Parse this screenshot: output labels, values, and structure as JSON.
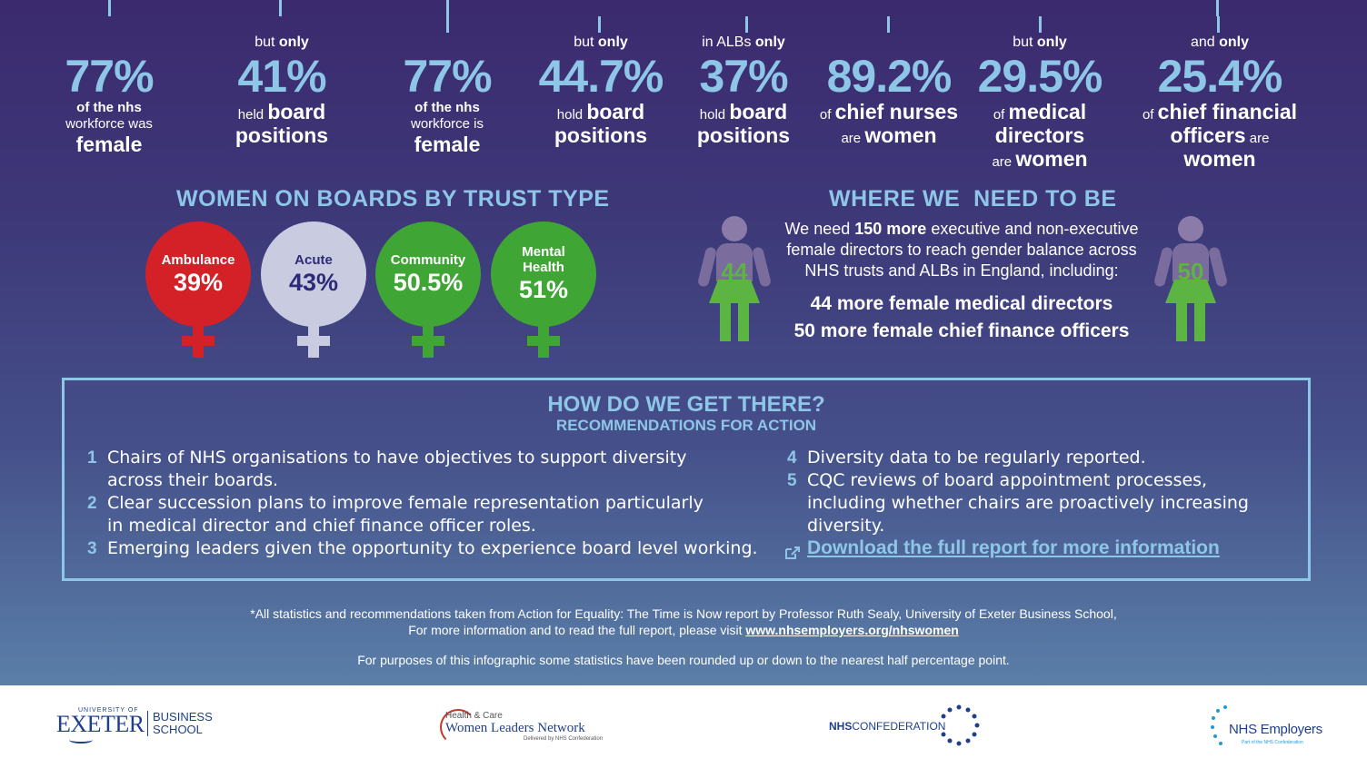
{
  "stats_2017": [
    {
      "pre": "",
      "pre_bold": "",
      "big": "77%",
      "l1": "of the nhs",
      "l2": "workforce was",
      "l3": "female"
    },
    {
      "pre": "but ",
      "pre_bold": "only",
      "big": "41%",
      "l1": "held",
      "l1b": "board",
      "l2": "positions"
    }
  ],
  "stats_2020": [
    {
      "pre": "",
      "pre_bold": "",
      "big": "77%",
      "l1": "of the nhs",
      "l2": "workforce is",
      "l3": "female"
    },
    {
      "pre": "but ",
      "pre_bold": "only",
      "big": "44.7%",
      "l1": "hold",
      "l1b": "board",
      "l2": "positions"
    },
    {
      "pre": "in ALBs ",
      "pre_bold": "only",
      "big": "37%",
      "l1": "hold",
      "l1b": "board",
      "l2": "positions"
    },
    {
      "pre": "",
      "pre_bold": "",
      "big": "89.2%",
      "l1": "of",
      "l1b": "chief nurses",
      "l2a": "are",
      "l2b": "women"
    },
    {
      "pre": "but ",
      "pre_bold": "only",
      "big": "29.5%",
      "l1": "of",
      "l1b": "medical",
      "l2": "directors",
      "l3a": "are",
      "l3b": "women"
    },
    {
      "pre": "and ",
      "pre_bold": "only",
      "big": "25.4%",
      "l1": "of",
      "l1b": "chief financial",
      "l2": "officers",
      "l2a": "are",
      "l3": "women"
    }
  ],
  "trust_type": {
    "title": "WOMEN ON BOARDS BY TRUST TYPE",
    "items": [
      {
        "label": "Ambulance",
        "pct": "39%",
        "color": "#d42027"
      },
      {
        "label": "Acute",
        "pct": "43%",
        "color": "#c9cce0"
      },
      {
        "label": "Community",
        "pct": "50.5%",
        "color": "#3fa535"
      },
      {
        "label": "Mental Health",
        "pct": "51%",
        "color": "#3fa535"
      }
    ]
  },
  "need": {
    "title": "WHERE WE  NEED TO BE",
    "p1a": "We need ",
    "p1b": "150 more",
    "p1c": " executive and non-executive",
    "p2": "female directors to reach gender balance across",
    "p3": "NHS trusts and ALBs in England, including:",
    "line1": "44 more female medical directors",
    "line2": "50 more female chief finance officers",
    "fig_left": "44",
    "fig_right": "50"
  },
  "recs": {
    "title": "HOW DO WE GET THERE?",
    "subtitle": "RECOMMENDATIONS FOR ACTION",
    "items": [
      {
        "n": "1",
        "a": "Chairs of NHS organisations to have objectives to support diversity",
        "b": "across their boards."
      },
      {
        "n": "2",
        "a": "Clear succession plans to improve female representation particularly",
        "b": "in medical director and chief finance officer roles."
      },
      {
        "n": "3",
        "a": "Emerging leaders given the opportunity to experience board level working.",
        "b": ""
      },
      {
        "n": "4",
        "a": "Diversity data to be regularly reported.",
        "b": ""
      },
      {
        "n": "5",
        "a": "CQC reviews of board appointment processes,",
        "b": "including whether chairs are proactively increasing",
        "c": "diversity."
      }
    ],
    "link": "Download the full report for more information"
  },
  "footer": {
    "l1": "*All statistics and recommendations taken from Action for Equality: The Time is Now report by Professor Ruth Sealy, University of Exeter Business School,",
    "l2": "For more information and to read the full report, please visit ",
    "url": "www.nhsemployers.org/nhswomen",
    "l3": "For purposes of this infographic some statistics have been rounded up or down to the nearest half percentage point."
  },
  "logos": {
    "exeter_small": "UNIVERSITY OF",
    "exeter": "EXETER",
    "business": "BUSINESS",
    "school": "SCHOOL",
    "hcwl1": "Health & Care",
    "hcwl2": "Women Leaders Network",
    "hcwl3": "Delivered by NHS Confederation",
    "nhsconf_a": "NHS",
    "nhsconf_b": "CONFEDERATION",
    "nhsemp": "NHS Employers",
    "nhsemp_sub": "Part of the NHS Confederation"
  }
}
